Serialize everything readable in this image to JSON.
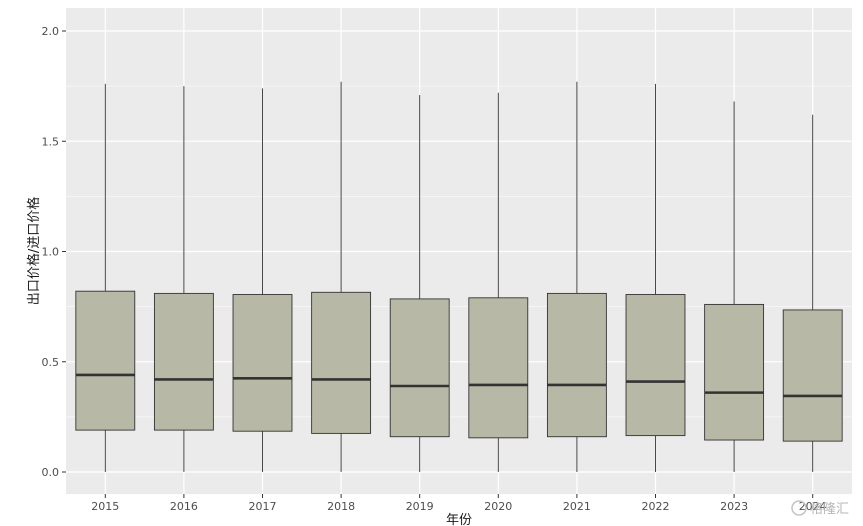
{
  "chart_data": {
    "type": "boxplot",
    "xlabel": "年份",
    "ylabel": "出口价格/进口价格",
    "ylim": [
      -0.1,
      2.05
    ],
    "yticks": [
      0.0,
      0.5,
      1.0,
      1.5,
      2.0
    ],
    "ytick_labels": [
      "0.0",
      "0.5",
      "1.0",
      "1.5",
      "2.0"
    ],
    "grid": true,
    "legend": "none",
    "categories": [
      "2015",
      "2016",
      "2017",
      "2018",
      "2019",
      "2020",
      "2021",
      "2022",
      "2023",
      "2024"
    ],
    "boxes": [
      {
        "min": 0.0,
        "q1": 0.19,
        "median": 0.44,
        "q3": 0.82,
        "max": 1.76
      },
      {
        "min": 0.0,
        "q1": 0.19,
        "median": 0.42,
        "q3": 0.81,
        "max": 1.75
      },
      {
        "min": 0.0,
        "q1": 0.185,
        "median": 0.425,
        "q3": 0.805,
        "max": 1.74
      },
      {
        "min": 0.0,
        "q1": 0.175,
        "median": 0.42,
        "q3": 0.815,
        "max": 1.77
      },
      {
        "min": 0.0,
        "q1": 0.16,
        "median": 0.39,
        "q3": 0.785,
        "max": 1.71
      },
      {
        "min": 0.0,
        "q1": 0.155,
        "median": 0.395,
        "q3": 0.79,
        "max": 1.72
      },
      {
        "min": 0.0,
        "q1": 0.16,
        "median": 0.395,
        "q3": 0.81,
        "max": 1.77
      },
      {
        "min": 0.0,
        "q1": 0.165,
        "median": 0.41,
        "q3": 0.805,
        "max": 1.76
      },
      {
        "min": 0.0,
        "q1": 0.145,
        "median": 0.36,
        "q3": 0.76,
        "max": 1.68
      },
      {
        "min": 0.0,
        "q1": 0.14,
        "median": 0.345,
        "q3": 0.735,
        "max": 1.62
      }
    ],
    "colors": {
      "panel_bg": "#ebebeb",
      "grid": "#ffffff",
      "box_fill": "#b8b8a6",
      "box_border": "#333333",
      "median": "#333333",
      "whisker": "#333333"
    }
  },
  "watermark": {
    "text": "格隆汇"
  }
}
